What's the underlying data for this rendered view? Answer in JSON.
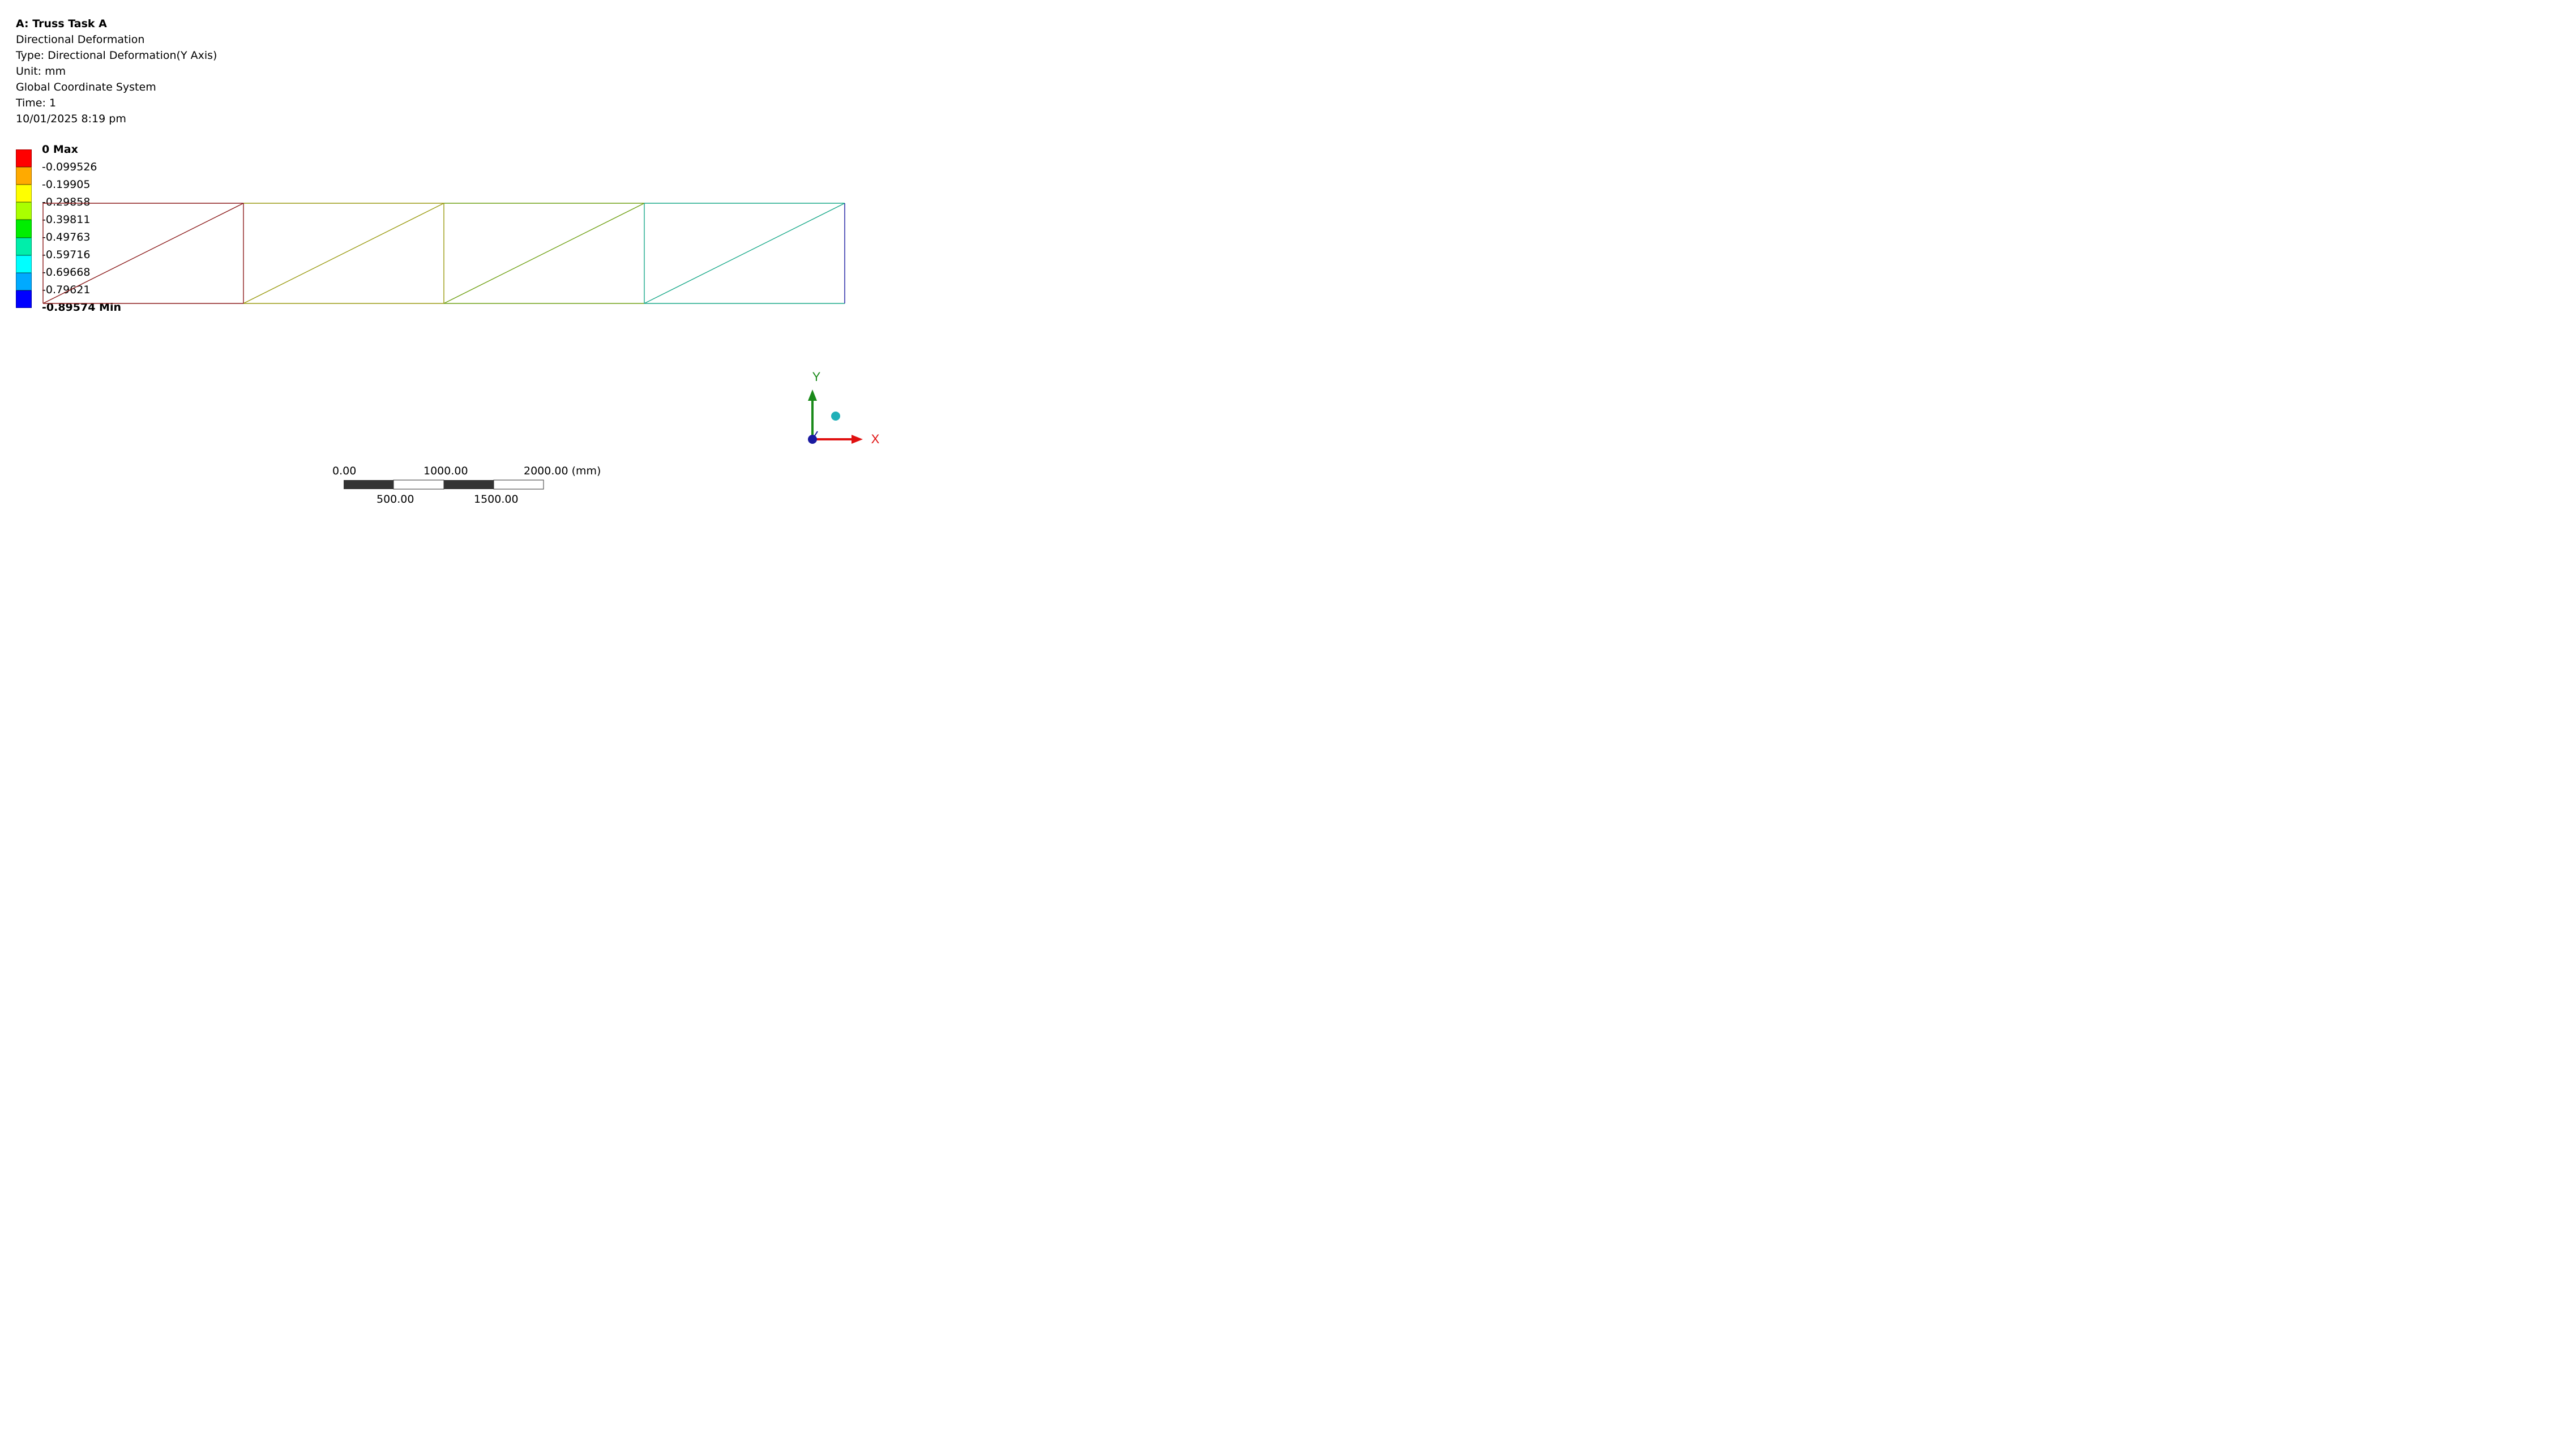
{
  "header": {
    "title": "A: Truss Task A",
    "result_name": "Directional Deformation",
    "type": "Type: Directional Deformation(Y Axis)",
    "unit": "Unit: mm",
    "coordinate_system": "Global Coordinate System",
    "time": "Time: 1",
    "timestamp": "10/01/2025 8:19 pm"
  },
  "legend": {
    "max_label": "0 Max",
    "min_label": "-0.89574 Min",
    "intermediate_labels": [
      "-0.099526",
      "-0.19905",
      "-0.29858",
      "-0.39811",
      "-0.49763",
      "-0.59716",
      "-0.69668",
      "-0.79621"
    ],
    "band_colors": [
      "#ff0000",
      "#ffaa00",
      "#ffff00",
      "#aaff00",
      "#00ee00",
      "#00eeaa",
      "#00ffff",
      "#00aaff",
      "#0000ff"
    ]
  },
  "model": {
    "member_colors": {
      "bay1": "#8b1a1a",
      "bay2": "#9a9a10",
      "bay3": "#6fa013",
      "bay4": "#18a888",
      "end": "#1a1aa0"
    }
  },
  "triad": {
    "y_label": "Y",
    "x_label": "X",
    "y_color": "#1a8a1a",
    "x_color": "#e01010",
    "z_color": "#1a1aa0",
    "iso_ball_color": "#20b0b8"
  },
  "scale_bar": {
    "top_labels": [
      "0.00",
      "1000.00",
      "2000.00 (mm)"
    ],
    "bottom_labels": [
      "500.00",
      "1500.00"
    ]
  }
}
